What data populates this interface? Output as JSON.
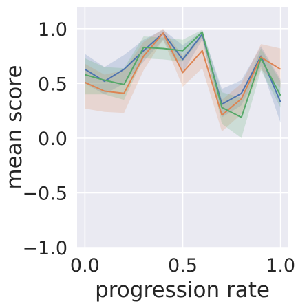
{
  "chart_data": {
    "type": "line",
    "title": "",
    "xlabel": "progression rate",
    "ylabel": "mean score",
    "xlim": [
      -0.04,
      1.04
    ],
    "ylim": [
      -1.0,
      1.2
    ],
    "xticks": [
      0.0,
      0.5,
      1.0
    ],
    "xtick_labels": [
      "0.0",
      "0.5",
      "1.0"
    ],
    "yticks": [
      -1.0,
      -0.5,
      0.0,
      0.5,
      1.0
    ],
    "ytick_labels": [
      "−1.0",
      "−0.5",
      "0.0",
      "0.5",
      "1.0"
    ],
    "grid": true,
    "legend": "none",
    "background": "#eaeaf2",
    "x": [
      0.0,
      0.1,
      0.2,
      0.3,
      0.4,
      0.5,
      0.6,
      0.7,
      0.8,
      0.9,
      1.0
    ],
    "series": [
      {
        "color": "#4c72b0",
        "values": [
          0.63,
          0.52,
          0.63,
          0.8,
          0.96,
          0.72,
          0.95,
          0.31,
          0.41,
          0.75,
          0.33
        ],
        "lower": [
          0.5,
          0.4,
          0.5,
          0.7,
          0.9,
          0.6,
          0.9,
          0.19,
          0.3,
          0.66,
          0.14
        ],
        "upper": [
          0.77,
          0.65,
          0.76,
          0.9,
          0.99,
          0.85,
          0.98,
          0.45,
          0.53,
          0.84,
          0.54
        ]
      },
      {
        "color": "#dd8452",
        "values": [
          0.51,
          0.43,
          0.41,
          0.75,
          0.96,
          0.6,
          0.8,
          0.21,
          0.36,
          0.74,
          0.63
        ],
        "lower": [
          0.27,
          0.24,
          0.23,
          0.62,
          0.9,
          0.47,
          0.64,
          0.06,
          0.22,
          0.63,
          0.46
        ],
        "upper": [
          0.68,
          0.58,
          0.62,
          0.88,
          1.0,
          0.75,
          0.95,
          0.35,
          0.5,
          0.86,
          0.82
        ]
      },
      {
        "color": "#55a868",
        "values": [
          0.58,
          0.53,
          0.49,
          0.83,
          0.82,
          0.8,
          0.97,
          0.28,
          0.19,
          0.73,
          0.39
        ],
        "lower": [
          0.4,
          0.4,
          0.35,
          0.73,
          0.72,
          0.7,
          0.92,
          0.13,
          0.0,
          0.62,
          0.28
        ],
        "upper": [
          0.73,
          0.65,
          0.64,
          0.93,
          0.92,
          0.9,
          0.99,
          0.42,
          0.37,
          0.82,
          0.52
        ]
      }
    ]
  }
}
